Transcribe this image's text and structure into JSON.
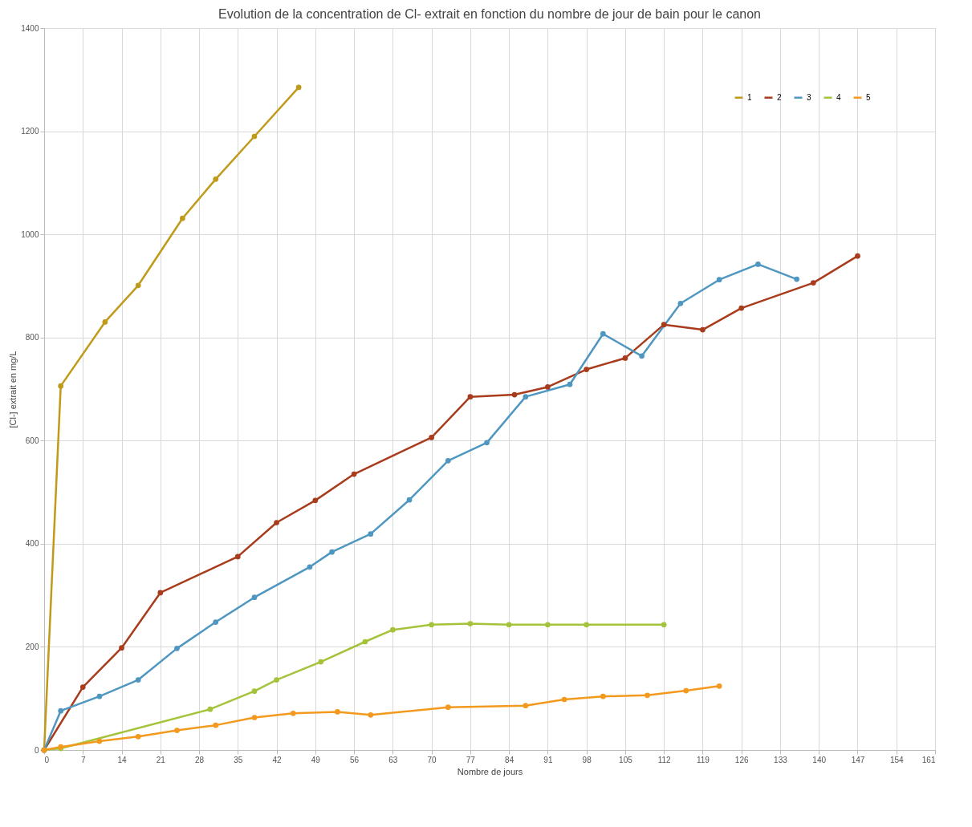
{
  "chart_data": {
    "type": "line",
    "title": "Evolution de la concentration de Cl- extrait en fonction du nombre de jour de bain pour le canon",
    "xlabel": "Nombre de jours",
    "ylabel": "[Cl-] extrait en mg/L",
    "xlim": [
      0,
      161
    ],
    "xticks": [
      0,
      7,
      14,
      21,
      28,
      35,
      42,
      49,
      56,
      63,
      70,
      77,
      84,
      91,
      98,
      105,
      112,
      119,
      126,
      133,
      140,
      147,
      154,
      161
    ],
    "ylim": [
      0,
      1400
    ],
    "yticks": [
      0,
      200,
      400,
      600,
      800,
      1000,
      1200,
      1400
    ],
    "grid": true,
    "legend": "top right",
    "marker": "circle",
    "line_style": "solid",
    "series": [
      {
        "name": "1",
        "color": "#c09a1a",
        "x": [
          0,
          3,
          11,
          17,
          25,
          31,
          38,
          46
        ],
        "values": [
          0,
          706,
          830,
          901,
          1031,
          1107,
          1190,
          1285
        ]
      },
      {
        "name": "2",
        "color": "#a83c1c",
        "x": [
          0,
          7,
          14,
          21,
          35,
          42,
          49,
          56,
          70,
          77,
          85,
          91,
          98,
          105,
          112,
          119,
          126,
          139,
          147
        ],
        "values": [
          0,
          122,
          198,
          305,
          375,
          441,
          484,
          535,
          606,
          685,
          689,
          704,
          738,
          760,
          825,
          815,
          857,
          906,
          958
        ]
      },
      {
        "name": "3",
        "color": "#4f97c0",
        "x": [
          0,
          3,
          10,
          17,
          24,
          31,
          38,
          48,
          52,
          59,
          66,
          73,
          80,
          87,
          95,
          101,
          108,
          115,
          122,
          129,
          136
        ],
        "values": [
          0,
          76,
          104,
          136,
          197,
          248,
          296,
          355,
          384,
          419,
          485,
          561,
          596,
          685,
          709,
          807,
          764,
          866,
          912,
          942,
          913
        ]
      },
      {
        "name": "4",
        "color": "#a5c33a",
        "x": [
          0,
          3,
          30,
          38,
          42,
          50,
          58,
          63,
          70,
          77,
          84,
          91,
          98,
          112
        ],
        "values": [
          0,
          3,
          79,
          114,
          136,
          171,
          210,
          233,
          243,
          245,
          243,
          243,
          243,
          243
        ]
      },
      {
        "name": "5",
        "color": "#f39a1e",
        "x": [
          0,
          3,
          10,
          17,
          24,
          31,
          38,
          45,
          53,
          59,
          73,
          87,
          94,
          101,
          109,
          116,
          122
        ],
        "values": [
          0,
          6,
          17,
          26,
          38,
          48,
          63,
          71,
          74,
          68,
          83,
          86,
          98,
          104,
          106,
          115,
          124
        ]
      }
    ]
  }
}
